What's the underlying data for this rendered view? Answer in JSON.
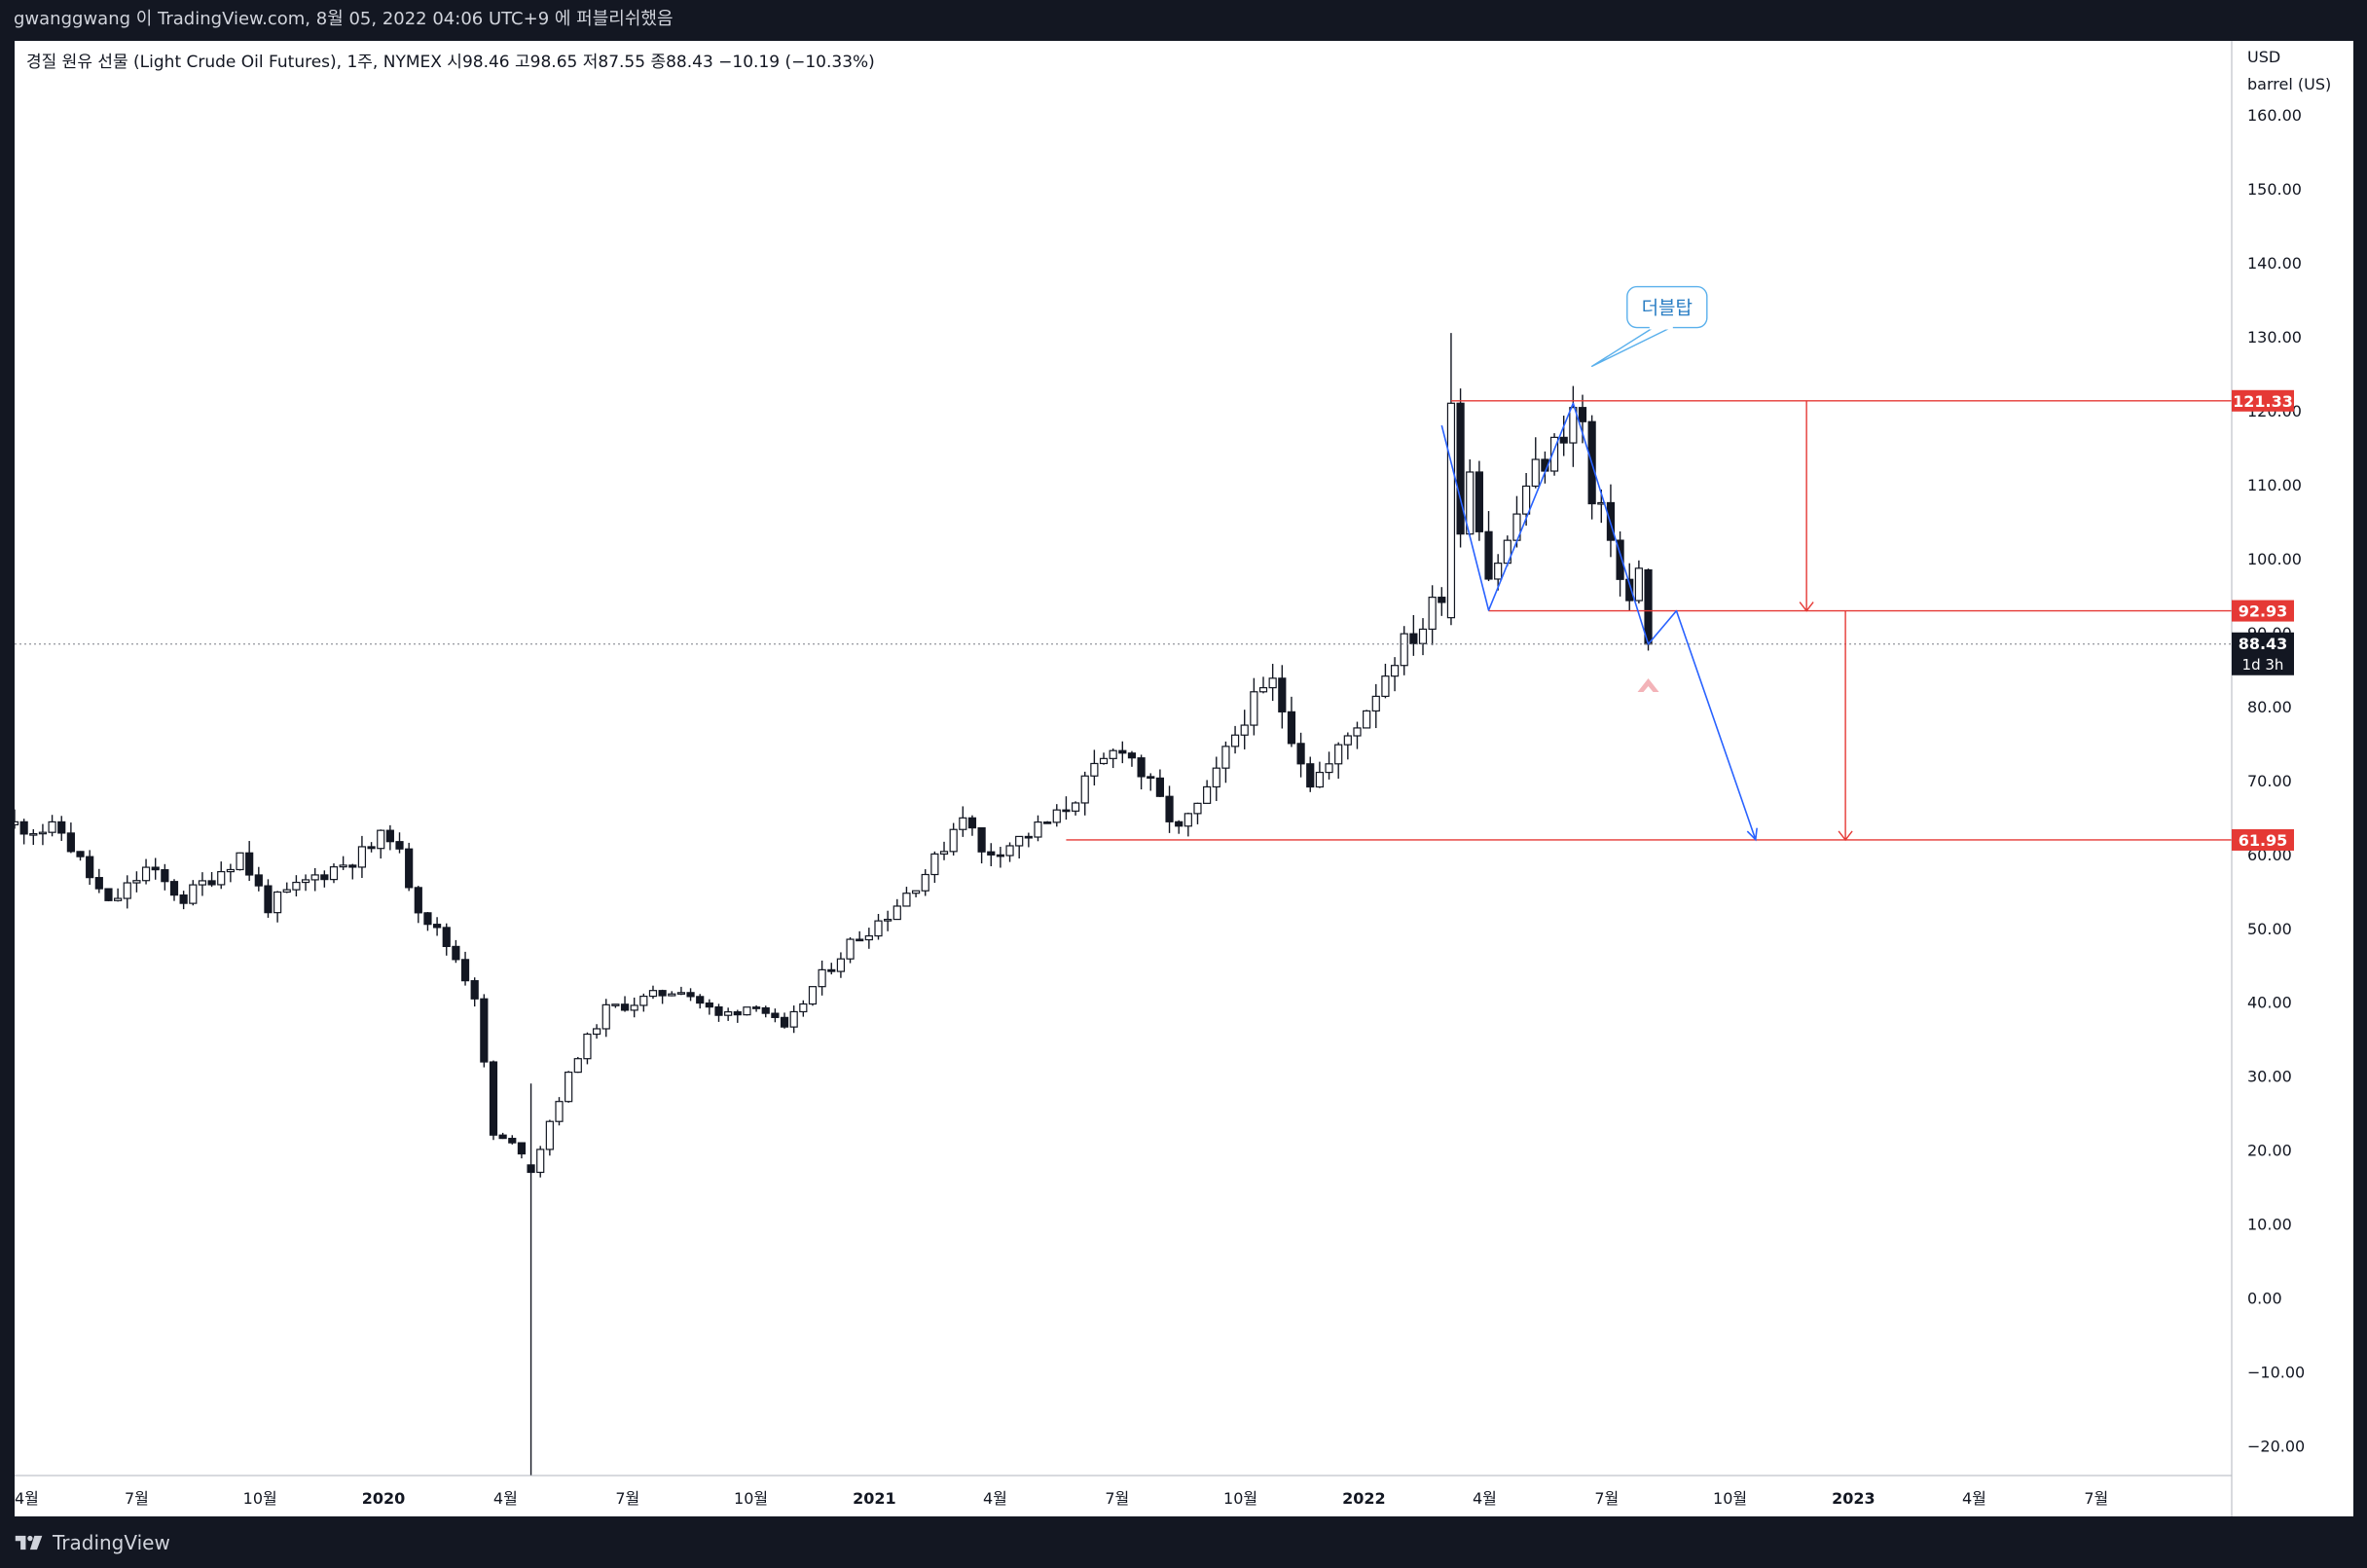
{
  "header": {
    "attribution": "gwanggwang 이 TradingView.com, 8월 05, 2022 04:06 UTC+9 에 퍼블리쉬했음"
  },
  "footer": {
    "brand": "TradingView"
  },
  "chart_data": {
    "type": "candlestick",
    "symbol_title": "경질 원유 선물 (Light Crude Oil Futures), 1주, NYMEX",
    "ohlc_display": [
      {
        "label": "시",
        "value": "98.46"
      },
      {
        "label": "고",
        "value": "98.65"
      },
      {
        "label": "저",
        "value": "87.55"
      },
      {
        "label": "종",
        "value": "88.43"
      },
      {
        "label": "",
        "value": "−10.19 (−10.33%)"
      }
    ],
    "last_close": 88.43,
    "y_axis": {
      "unit_label": [
        "USD",
        "barrel (US)"
      ],
      "range": [
        -24,
        170
      ],
      "ticks": [
        160,
        150,
        140,
        130,
        120,
        110,
        100,
        90,
        80,
        70,
        60,
        50,
        40,
        30,
        20,
        10,
        0,
        -10,
        -20
      ],
      "tick_labels": [
        "160.00",
        "150.00",
        "140.00",
        "130.00",
        "120.00",
        "110.00",
        "100.00",
        "90.00",
        "80.00",
        "70.00",
        "60.00",
        "50.00",
        "40.00",
        "30.00",
        "20.00",
        "10.00",
        "0.00",
        "−10.00",
        "−20.00"
      ]
    },
    "x_axis": {
      "range": [
        "2019-04-01",
        "2023-10-10"
      ],
      "ticks": [
        {
          "date": "2019-04-01",
          "label": "4월"
        },
        {
          "date": "2019-07-01",
          "label": "7월"
        },
        {
          "date": "2019-10-01",
          "label": "10월"
        },
        {
          "date": "2020-01-01",
          "label": "2020"
        },
        {
          "date": "2020-04-01",
          "label": "4월"
        },
        {
          "date": "2020-07-01",
          "label": "7월"
        },
        {
          "date": "2020-10-01",
          "label": "10월"
        },
        {
          "date": "2021-01-01",
          "label": "2021"
        },
        {
          "date": "2021-04-01",
          "label": "4월"
        },
        {
          "date": "2021-07-01",
          "label": "7월"
        },
        {
          "date": "2021-10-01",
          "label": "10월"
        },
        {
          "date": "2022-01-01",
          "label": "2022"
        },
        {
          "date": "2022-04-01",
          "label": "4월"
        },
        {
          "date": "2022-07-01",
          "label": "7월"
        },
        {
          "date": "2022-10-01",
          "label": "10월"
        },
        {
          "date": "2023-01-01",
          "label": "2023"
        },
        {
          "date": "2023-04-01",
          "label": "4월"
        },
        {
          "date": "2023-07-01",
          "label": "7월"
        }
      ]
    },
    "price_anchors": [
      [
        "2019-04-01",
        64
      ],
      [
        "2019-05-06",
        63
      ],
      [
        "2019-06-10",
        53
      ],
      [
        "2019-07-08",
        58
      ],
      [
        "2019-08-05",
        54
      ],
      [
        "2019-09-16",
        60
      ],
      [
        "2019-10-07",
        53
      ],
      [
        "2019-11-11",
        57
      ],
      [
        "2019-12-16",
        60
      ],
      [
        "2020-01-06",
        63
      ],
      [
        "2020-01-27",
        53
      ],
      [
        "2020-02-24",
        46
      ],
      [
        "2020-03-09",
        41
      ],
      [
        "2020-03-23",
        22
      ],
      [
        "2020-04-13",
        20
      ],
      [
        "2020-04-20",
        17
      ],
      [
        "2020-05-04",
        24
      ],
      [
        "2020-05-25",
        33
      ],
      [
        "2020-06-15",
        39
      ],
      [
        "2020-07-06",
        40
      ],
      [
        "2020-08-10",
        42
      ],
      [
        "2020-09-07",
        38
      ],
      [
        "2020-10-05",
        40
      ],
      [
        "2020-10-26",
        36
      ],
      [
        "2020-11-16",
        42
      ],
      [
        "2020-12-14",
        48
      ],
      [
        "2021-01-11",
        52
      ],
      [
        "2021-02-15",
        59
      ],
      [
        "2021-03-08",
        66
      ],
      [
        "2021-03-22",
        60
      ],
      [
        "2021-04-19",
        62
      ],
      [
        "2021-05-17",
        65
      ],
      [
        "2021-06-14",
        71
      ],
      [
        "2021-07-05",
        75
      ],
      [
        "2021-07-19",
        71
      ],
      [
        "2021-08-16",
        63
      ],
      [
        "2021-09-06",
        68
      ],
      [
        "2021-10-04",
        79
      ],
      [
        "2021-10-25",
        83
      ],
      [
        "2021-11-22",
        70
      ],
      [
        "2021-12-06",
        72
      ],
      [
        "2022-01-03",
        80
      ],
      [
        "2022-01-24",
        87
      ],
      [
        "2022-02-14",
        91
      ],
      [
        "2022-02-28",
        96
      ],
      [
        "2022-03-07",
        115
      ],
      [
        "2022-03-14",
        104
      ],
      [
        "2022-03-21",
        113
      ],
      [
        "2022-04-04",
        98
      ],
      [
        "2022-04-18",
        102
      ],
      [
        "2022-05-02",
        110
      ],
      [
        "2022-05-23",
        115
      ],
      [
        "2022-06-06",
        120
      ],
      [
        "2022-06-13",
        118
      ],
      [
        "2022-06-20",
        107
      ],
      [
        "2022-07-04",
        104
      ],
      [
        "2022-07-11",
        97
      ],
      [
        "2022-07-18",
        94
      ],
      [
        "2022-07-25",
        98
      ],
      [
        "2022-08-01",
        88.43
      ]
    ],
    "special_candles": [
      {
        "date": "2022-03-07",
        "open": 92,
        "high": 130.5,
        "low": 91,
        "close": 121
      },
      {
        "date": "2020-04-20",
        "open": 18,
        "high": 29,
        "low": -40,
        "close": 17
      },
      {
        "date": "2022-08-01",
        "open": 98.46,
        "high": 98.65,
        "low": 87.55,
        "close": 88.43
      }
    ],
    "horizontal_levels": [
      {
        "value": 121.33,
        "label": "121.33",
        "from": "2022-03-07",
        "to": "2023-10-10",
        "color": "#e53935"
      },
      {
        "value": 92.93,
        "label": "92.93",
        "from": "2022-04-04",
        "to": "2023-10-10",
        "color": "#e53935"
      },
      {
        "value": 61.95,
        "label": "61.95",
        "from": "2021-05-24",
        "to": "2023-10-10",
        "color": "#e53935"
      }
    ],
    "measure_arrows": [
      {
        "date": "2022-11-27",
        "from": 121.33,
        "to": 92.93
      },
      {
        "date": "2022-12-26",
        "from": 92.93,
        "to": 61.95
      }
    ],
    "pattern_path": [
      [
        "2022-02-28",
        118
      ],
      [
        "2022-04-04",
        93
      ],
      [
        "2022-06-06",
        121
      ],
      [
        "2022-08-01",
        88.43
      ],
      [
        "2022-08-22",
        92.93
      ],
      [
        "2022-10-20",
        62
      ]
    ],
    "callout": {
      "text": "더블탑",
      "date": "2022-08-15",
      "value": 134,
      "tail_date": "2022-06-20",
      "tail_value": 126
    },
    "up_arrow": {
      "date": "2022-08-01",
      "value": 83
    },
    "current_price_tag": {
      "value": 88.43,
      "label": "88.43",
      "countdown": "1d 3h"
    }
  }
}
